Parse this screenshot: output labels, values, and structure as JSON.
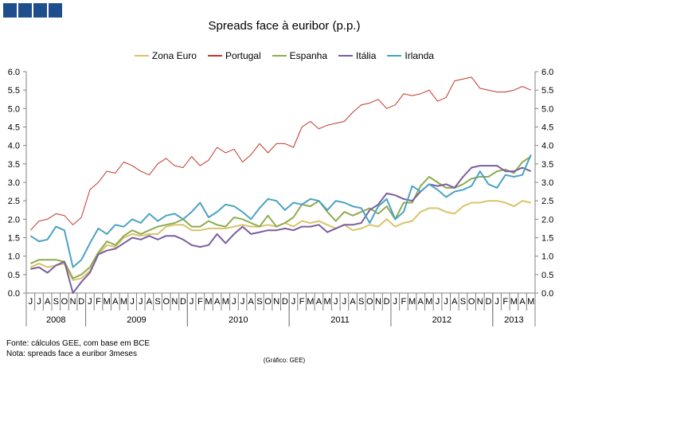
{
  "chart_data": {
    "type": "line",
    "title": "Spreads face à euribor (p.p.)",
    "ylim": [
      0,
      6
    ],
    "yticks": [
      "0.0",
      "0.5",
      "1.0",
      "1.5",
      "2.0",
      "2.5",
      "3.0",
      "3.5",
      "4.0",
      "4.5",
      "5.0",
      "5.5",
      "6.0"
    ],
    "x": [
      "J",
      "J",
      "A",
      "S",
      "O",
      "N",
      "D",
      "J",
      "F",
      "M",
      "A",
      "M",
      "J",
      "J",
      "A",
      "S",
      "O",
      "N",
      "D",
      "J",
      "F",
      "M",
      "A",
      "M",
      "J",
      "J",
      "A",
      "S",
      "O",
      "N",
      "D",
      "J",
      "F",
      "M",
      "A",
      "M",
      "J",
      "J",
      "A",
      "S",
      "O",
      "N",
      "D",
      "J",
      "F",
      "M",
      "A",
      "M",
      "J",
      "J",
      "A",
      "S",
      "O",
      "N",
      "D",
      "J",
      "F",
      "M",
      "A",
      "M"
    ],
    "years": [
      {
        "label": "2008",
        "start": 0,
        "count": 7
      },
      {
        "label": "2009",
        "start": 7,
        "count": 12
      },
      {
        "label": "2010",
        "start": 19,
        "count": 12
      },
      {
        "label": "2011",
        "start": 31,
        "count": 12
      },
      {
        "label": "2012",
        "start": 43,
        "count": 12
      },
      {
        "label": "2013",
        "start": 55,
        "count": 5
      }
    ],
    "legend_position": "top",
    "series": [
      {
        "name": "Zona Euro",
        "color": "#D8C46A",
        "values": [
          0.7,
          0.8,
          0.7,
          0.75,
          0.8,
          0.35,
          0.4,
          0.6,
          1.05,
          1.3,
          1.25,
          1.5,
          1.6,
          1.55,
          1.6,
          1.6,
          1.8,
          1.85,
          1.85,
          1.7,
          1.7,
          1.75,
          1.75,
          1.75,
          1.8,
          1.85,
          1.8,
          1.8,
          1.85,
          1.8,
          1.9,
          1.8,
          1.95,
          1.9,
          1.95,
          1.85,
          1.75,
          1.85,
          1.7,
          1.75,
          1.85,
          1.8,
          2.0,
          1.8,
          1.9,
          1.95,
          2.2,
          2.3,
          2.3,
          2.2,
          2.15,
          2.35,
          2.45,
          2.45,
          2.5,
          2.5,
          2.45,
          2.35,
          2.5,
          2.45
        ]
      },
      {
        "name": "Portugal",
        "color": "#C0392B",
        "values": [
          1.7,
          1.95,
          2.0,
          2.15,
          2.1,
          1.85,
          2.05,
          2.8,
          3.0,
          3.3,
          3.25,
          3.55,
          3.45,
          3.3,
          3.2,
          3.5,
          3.65,
          3.45,
          3.4,
          3.7,
          3.45,
          3.6,
          3.95,
          3.8,
          3.9,
          3.55,
          3.75,
          4.05,
          3.8,
          4.05,
          4.05,
          3.95,
          4.5,
          4.65,
          4.45,
          4.55,
          4.6,
          4.65,
          4.9,
          5.1,
          5.15,
          5.25,
          5.0,
          5.1,
          5.4,
          5.35,
          5.4,
          5.5,
          5.2,
          5.3,
          5.75,
          5.8,
          5.85,
          5.55,
          5.5,
          5.45,
          5.45,
          5.5,
          5.6,
          5.5
        ]
      },
      {
        "name": "Espanha",
        "color": "#8FAB51",
        "values": [
          0.8,
          0.9,
          0.9,
          0.9,
          0.85,
          0.4,
          0.5,
          0.7,
          1.1,
          1.4,
          1.3,
          1.55,
          1.7,
          1.6,
          1.7,
          1.8,
          1.85,
          1.9,
          2.0,
          1.8,
          1.8,
          1.95,
          1.85,
          1.8,
          2.05,
          2.0,
          1.9,
          1.8,
          2.1,
          1.8,
          1.9,
          2.05,
          2.4,
          2.35,
          2.5,
          2.2,
          1.95,
          2.2,
          2.1,
          2.2,
          2.3,
          2.15,
          2.35,
          2.0,
          2.45,
          2.45,
          2.9,
          3.15,
          3.0,
          2.85,
          2.85,
          2.95,
          3.1,
          3.15,
          3.15,
          3.3,
          3.35,
          3.25,
          3.55,
          3.7
        ]
      },
      {
        "name": "Itália",
        "color": "#7B5E9E",
        "values": [
          0.65,
          0.7,
          0.55,
          0.75,
          0.85,
          0.0,
          0.3,
          0.55,
          1.05,
          1.15,
          1.2,
          1.35,
          1.5,
          1.45,
          1.55,
          1.45,
          1.55,
          1.55,
          1.45,
          1.3,
          1.25,
          1.3,
          1.6,
          1.35,
          1.6,
          1.8,
          1.6,
          1.65,
          1.7,
          1.7,
          1.75,
          1.7,
          1.8,
          1.8,
          1.85,
          1.65,
          1.75,
          1.85,
          1.85,
          1.9,
          2.25,
          2.4,
          2.7,
          2.65,
          2.55,
          2.5,
          2.75,
          2.95,
          2.9,
          2.95,
          2.85,
          3.15,
          3.4,
          3.45,
          3.45,
          3.45,
          3.3,
          3.3,
          3.4,
          3.3
        ]
      },
      {
        "name": "Irlanda",
        "color": "#4BA3C3",
        "values": [
          1.55,
          1.4,
          1.45,
          1.8,
          1.7,
          0.7,
          0.9,
          1.35,
          1.75,
          1.6,
          1.85,
          1.8,
          2.0,
          1.9,
          2.15,
          1.95,
          2.1,
          2.15,
          2.0,
          2.2,
          2.45,
          2.05,
          2.2,
          2.4,
          2.35,
          2.2,
          2.0,
          2.3,
          2.55,
          2.5,
          2.25,
          2.45,
          2.4,
          2.55,
          2.5,
          2.25,
          2.5,
          2.45,
          2.35,
          2.3,
          1.9,
          2.35,
          2.55,
          2.0,
          2.2,
          2.9,
          2.75,
          2.95,
          2.8,
          2.6,
          2.75,
          2.8,
          2.9,
          3.3,
          2.95,
          2.85,
          3.2,
          3.15,
          3.2,
          3.75
        ]
      }
    ]
  },
  "notes": {
    "source": "Fonte: cálculos GEE, com base em BCE",
    "note": "Nota: spreads face a euribor 3meses",
    "credit": "(Gráfico: GEE)"
  },
  "logo": {
    "color": "#1F4E8C"
  }
}
